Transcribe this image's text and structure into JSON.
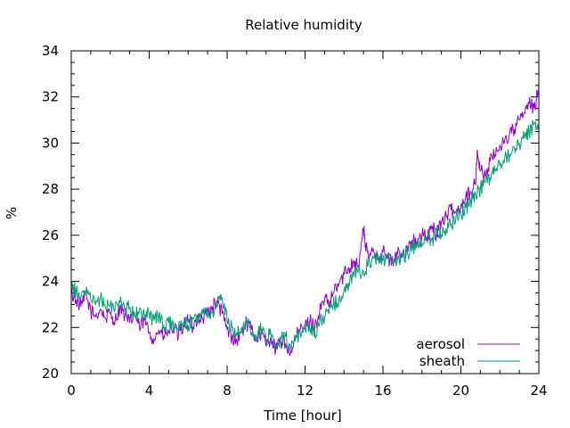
{
  "chart_data": {
    "type": "line",
    "title": "Relative humidity",
    "xlabel": "Time [hour]",
    "ylabel": "%",
    "xlim": [
      0,
      24
    ],
    "ylim": [
      20,
      34
    ],
    "xticks": [
      0,
      4,
      8,
      12,
      16,
      20,
      24
    ],
    "yticks": [
      20,
      22,
      24,
      26,
      28,
      30,
      32,
      34
    ],
    "grid": false,
    "legend_position": "bottom-right",
    "series": [
      {
        "name": "aerosol",
        "color": "#9400d3",
        "x": [
          0,
          0.25,
          0.5,
          0.75,
          1,
          1.25,
          1.5,
          1.75,
          2,
          2.25,
          2.5,
          2.75,
          3,
          3.25,
          3.5,
          3.75,
          4,
          4.25,
          4.5,
          4.75,
          5,
          5.25,
          5.5,
          5.75,
          6,
          6.25,
          6.5,
          6.75,
          7,
          7.25,
          7.5,
          7.75,
          8,
          8.25,
          8.5,
          8.75,
          9,
          9.25,
          9.5,
          9.75,
          10,
          10.25,
          10.5,
          10.75,
          11,
          11.25,
          11.5,
          11.75,
          12,
          12.25,
          12.5,
          12.75,
          13,
          13.25,
          13.5,
          13.75,
          14,
          14.25,
          14.5,
          14.75,
          15,
          15.1,
          15.25,
          15.5,
          15.75,
          16,
          16.25,
          16.5,
          16.75,
          17,
          17.25,
          17.5,
          17.75,
          18,
          18.25,
          18.5,
          18.75,
          19,
          19.25,
          19.5,
          19.75,
          20,
          20.25,
          20.5,
          20.75,
          20.85,
          21,
          21.25,
          21.5,
          21.75,
          22,
          22.25,
          22.5,
          22.75,
          23,
          23.25,
          23.5,
          23.75,
          24
        ],
        "y": [
          23.5,
          23.2,
          22.9,
          23.4,
          22.7,
          22.5,
          22.8,
          22.4,
          22.6,
          22.3,
          22.9,
          22.5,
          22.2,
          22.6,
          22.0,
          22.3,
          21.8,
          21.5,
          21.9,
          21.6,
          21.8,
          22.0,
          21.6,
          22.1,
          22.3,
          22.0,
          22.5,
          22.4,
          22.7,
          22.9,
          23.1,
          22.6,
          21.9,
          21.6,
          21.4,
          21.8,
          22.2,
          21.9,
          21.5,
          21.8,
          21.2,
          21.6,
          21.0,
          21.4,
          21.3,
          20.9,
          21.5,
          21.9,
          22.1,
          22.3,
          22.0,
          22.7,
          23.2,
          23.0,
          23.6,
          23.9,
          24.3,
          24.6,
          24.9,
          24.7,
          26.3,
          25.6,
          25.0,
          25.4,
          25.1,
          25.3,
          25.0,
          24.8,
          25.2,
          25.1,
          25.5,
          25.8,
          25.6,
          26.0,
          25.9,
          26.3,
          26.1,
          26.6,
          26.8,
          27.1,
          27.0,
          27.3,
          27.7,
          27.9,
          28.2,
          29.7,
          28.8,
          28.6,
          29.2,
          29.5,
          29.9,
          30.1,
          30.4,
          30.6,
          31.0,
          31.3,
          31.7,
          31.5,
          32.3
        ]
      },
      {
        "name": "sheath",
        "color": "#009e73",
        "x": [
          0,
          0.25,
          0.5,
          0.75,
          1,
          1.25,
          1.5,
          1.75,
          2,
          2.25,
          2.5,
          2.75,
          3,
          3.25,
          3.5,
          3.75,
          4,
          4.25,
          4.5,
          4.75,
          5,
          5.25,
          5.5,
          5.75,
          6,
          6.25,
          6.5,
          6.75,
          7,
          7.25,
          7.5,
          7.75,
          8,
          8.25,
          8.5,
          8.75,
          9,
          9.25,
          9.5,
          9.75,
          10,
          10.25,
          10.5,
          10.75,
          11,
          11.25,
          11.5,
          11.75,
          12,
          12.25,
          12.5,
          12.75,
          13,
          13.25,
          13.5,
          13.75,
          14,
          14.25,
          14.5,
          14.75,
          15,
          15.25,
          15.5,
          15.75,
          16,
          16.25,
          16.5,
          16.75,
          17,
          17.25,
          17.5,
          17.75,
          18,
          18.25,
          18.5,
          18.75,
          19,
          19.25,
          19.5,
          19.75,
          20,
          20.25,
          20.5,
          20.75,
          21,
          21.25,
          21.5,
          21.75,
          22,
          22.25,
          22.5,
          22.75,
          23,
          23.25,
          23.5,
          23.75,
          24
        ],
        "y": [
          23.7,
          23.6,
          23.3,
          23.5,
          23.2,
          23.0,
          23.3,
          22.9,
          23.0,
          22.8,
          23.1,
          22.7,
          22.9,
          22.6,
          22.8,
          22.5,
          22.6,
          22.3,
          22.5,
          22.1,
          22.2,
          22.0,
          21.9,
          22.2,
          22.1,
          22.4,
          22.2,
          22.6,
          22.4,
          22.8,
          22.9,
          23.3,
          22.3,
          22.0,
          21.8,
          22.0,
          22.2,
          21.8,
          21.6,
          21.9,
          21.5,
          21.7,
          21.3,
          21.5,
          21.6,
          21.2,
          21.4,
          21.8,
          22.0,
          21.9,
          21.8,
          22.2,
          22.4,
          22.8,
          23.0,
          23.3,
          23.6,
          23.9,
          24.2,
          24.5,
          24.4,
          24.8,
          25.0,
          25.1,
          24.9,
          25.2,
          24.9,
          25.0,
          25.0,
          25.3,
          25.4,
          25.7,
          25.5,
          25.9,
          25.8,
          26.1,
          26.0,
          26.3,
          26.5,
          26.8,
          26.9,
          27.2,
          27.5,
          27.8,
          28.0,
          28.3,
          28.5,
          28.8,
          29.0,
          29.3,
          29.5,
          29.8,
          30.0,
          30.2,
          30.5,
          30.8,
          30.7
        ]
      }
    ]
  }
}
